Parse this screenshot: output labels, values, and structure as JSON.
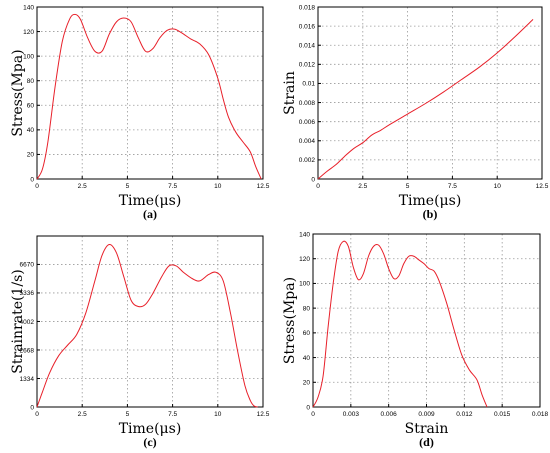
{
  "chart_data": [
    {
      "type": "line",
      "panel": "(a)",
      "xlabel": "Time(μs)",
      "ylabel": "Stress(Mpa)",
      "xlim": [
        0,
        12.5
      ],
      "ylim": [
        0,
        140
      ],
      "xticks": [
        0,
        2.5,
        5,
        7.5,
        10,
        12.5
      ],
      "xtick_labels": [
        "0",
        "2.5",
        "5",
        "7.5",
        "10",
        "12.5"
      ],
      "yticks": [
        0,
        20,
        40,
        60,
        80,
        100,
        120,
        140
      ],
      "ytick_labels": [
        "0",
        "20",
        "40",
        "60",
        "80",
        "100",
        "120",
        "140"
      ],
      "grid": true,
      "series": [
        {
          "color": "#e8202a",
          "x": [
            0,
            0.3,
            0.6,
            1.0,
            1.4,
            1.8,
            2.1,
            2.4,
            2.8,
            3.2,
            3.6,
            4.0,
            4.4,
            4.8,
            5.2,
            5.6,
            6.0,
            6.4,
            6.8,
            7.2,
            7.6,
            8.0,
            8.5,
            9.0,
            9.5,
            10.0,
            10.3,
            10.6,
            11.0,
            11.4,
            11.8,
            12.1,
            12.4
          ],
          "y": [
            0,
            8,
            30,
            75,
            112,
            130,
            134,
            130,
            115,
            104,
            104,
            118,
            128,
            131,
            128,
            115,
            104,
            106,
            115,
            121,
            122,
            119,
            114,
            110,
            101,
            82,
            65,
            50,
            38,
            30,
            22,
            10,
            0
          ]
        }
      ]
    },
    {
      "type": "line",
      "panel": "(b)",
      "xlabel": "Time(μs)",
      "ylabel": "Strain",
      "xlim": [
        0,
        12.5
      ],
      "ylim": [
        0,
        0.018
      ],
      "xticks": [
        0,
        2.5,
        5,
        7.5,
        10,
        12.5
      ],
      "xtick_labels": [
        "0",
        "2.5",
        "5",
        "7.5",
        "10",
        "12.5"
      ],
      "yticks": [
        0,
        0.002,
        0.004,
        0.006,
        0.008,
        0.01,
        0.012,
        0.014,
        0.016,
        0.018
      ],
      "ytick_labels": [
        "0",
        "0.002",
        "0.004",
        "0.006",
        "0.008",
        "0.01",
        "0.012",
        "0.014",
        "0.016",
        "0.018"
      ],
      "grid": true,
      "series": [
        {
          "color": "#e8202a",
          "x": [
            0,
            0.5,
            1.0,
            1.5,
            2.0,
            2.5,
            3.0,
            3.5,
            4.0,
            5.0,
            6.0,
            7.0,
            8.0,
            9.0,
            10.0,
            11.0,
            12.0
          ],
          "y": [
            0,
            0.0008,
            0.0015,
            0.0024,
            0.0032,
            0.0038,
            0.0046,
            0.0051,
            0.0057,
            0.0068,
            0.0079,
            0.0091,
            0.0104,
            0.0117,
            0.0132,
            0.0149,
            0.0167
          ]
        }
      ]
    },
    {
      "type": "line",
      "panel": "(c)",
      "xlabel": "Time(μs)",
      "ylabel": "Strainrate(1/s)",
      "xlim": [
        0,
        12.5
      ],
      "ylim": [
        0,
        8000
      ],
      "xticks": [
        0,
        2.5,
        5,
        7.5,
        10,
        12.5
      ],
      "xtick_labels": [
        "0",
        "2.5",
        "5",
        "7.5",
        "10",
        "12.5"
      ],
      "yticks": [
        0,
        1334,
        2668,
        4002,
        5336,
        6670
      ],
      "ytick_labels": [
        "0",
        "1334",
        "2668",
        "4002",
        "5336",
        "6670"
      ],
      "grid": true,
      "series": [
        {
          "color": "#e8202a",
          "x": [
            0,
            0.3,
            0.7,
            1.2,
            1.7,
            2.2,
            2.7,
            3.2,
            3.6,
            4.0,
            4.4,
            4.8,
            5.2,
            5.6,
            6.0,
            6.4,
            6.9,
            7.3,
            7.7,
            8.1,
            8.6,
            9.0,
            9.5,
            9.9,
            10.3,
            10.7,
            11.1,
            11.5,
            11.8,
            12.0,
            12.2
          ],
          "y": [
            0,
            700,
            1600,
            2400,
            2900,
            3400,
            4400,
            5900,
            7100,
            7600,
            7200,
            6100,
            5000,
            4700,
            4800,
            5300,
            6100,
            6600,
            6600,
            6300,
            6000,
            5900,
            6200,
            6300,
            5900,
            4400,
            2600,
            1000,
            300,
            50,
            0
          ]
        }
      ]
    },
    {
      "type": "line",
      "panel": "(d)",
      "xlabel": "Strain",
      "ylabel": "Stress(Mpa)",
      "xlim": [
        0,
        0.018
      ],
      "ylim": [
        0,
        140
      ],
      "xticks": [
        0,
        0.003,
        0.006,
        0.009,
        0.012,
        0.015,
        0.018
      ],
      "xtick_labels": [
        "0",
        "0.003",
        "0.006",
        "0.009",
        "0.012",
        "0.015",
        "0.018"
      ],
      "yticks": [
        0,
        20,
        40,
        60,
        80,
        100,
        120,
        140
      ],
      "ytick_labels": [
        "0",
        "20",
        "40",
        "60",
        "80",
        "100",
        "120",
        "140"
      ],
      "grid": true,
      "series": [
        {
          "color": "#e8202a",
          "x": [
            0,
            0.0004,
            0.0008,
            0.0012,
            0.0016,
            0.002,
            0.0024,
            0.0028,
            0.0032,
            0.0036,
            0.004,
            0.0044,
            0.0048,
            0.0052,
            0.0056,
            0.006,
            0.0064,
            0.0068,
            0.0072,
            0.0076,
            0.008,
            0.0084,
            0.0088,
            0.0092,
            0.0096,
            0.01,
            0.0106,
            0.0112,
            0.0118,
            0.0124,
            0.013,
            0.0134,
            0.0138
          ],
          "y": [
            0,
            8,
            25,
            65,
            100,
            126,
            134,
            130,
            113,
            103,
            108,
            122,
            130,
            131,
            124,
            112,
            104,
            106,
            116,
            122,
            122,
            119,
            116,
            112,
            110,
            102,
            84,
            62,
            42,
            30,
            22,
            10,
            0
          ]
        }
      ]
    }
  ]
}
